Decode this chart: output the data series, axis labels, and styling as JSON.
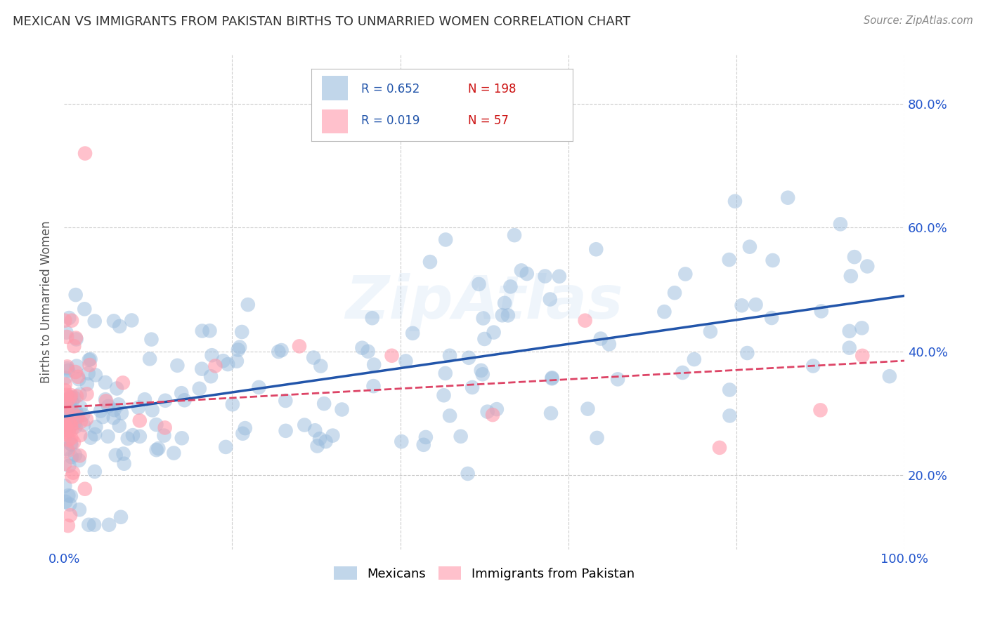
{
  "title": "MEXICAN VS IMMIGRANTS FROM PAKISTAN BIRTHS TO UNMARRIED WOMEN CORRELATION CHART",
  "source": "Source: ZipAtlas.com",
  "ylabel": "Births to Unmarried Women",
  "xlim": [
    0.0,
    1.0
  ],
  "ylim": [
    0.08,
    0.88
  ],
  "blue_R": 0.652,
  "blue_N": 198,
  "pink_R": 0.019,
  "pink_N": 57,
  "blue_color": "#99bbdd",
  "pink_color": "#ff99aa",
  "blue_line_color": "#2255aa",
  "pink_line_color": "#dd4466",
  "legend_blue_label": "Mexicans",
  "legend_pink_label": "Immigrants from Pakistan",
  "watermark": "ZipAtlas",
  "background_color": "#ffffff",
  "grid_color": "#cccccc",
  "title_color": "#333333",
  "right_tick_color": "#2255cc",
  "blue_line_x0": 0.0,
  "blue_line_y0": 0.295,
  "blue_line_x1": 1.0,
  "blue_line_y1": 0.49,
  "pink_line_x0": 0.0,
  "pink_line_y0": 0.31,
  "pink_line_x1": 1.0,
  "pink_line_y1": 0.385,
  "ytick_positions": [
    0.2,
    0.4,
    0.6,
    0.8
  ],
  "ytick_labels": [
    "20.0%",
    "40.0%",
    "60.0%",
    "80.0%"
  ]
}
